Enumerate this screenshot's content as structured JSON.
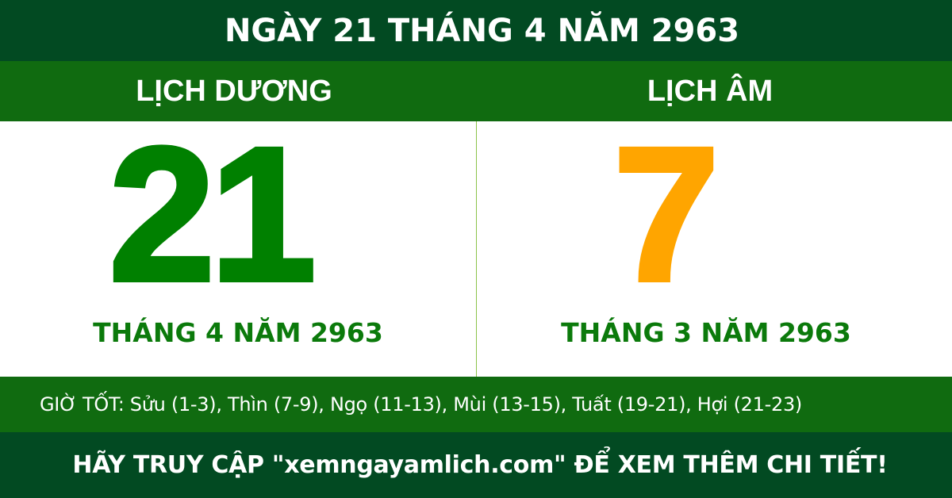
{
  "title": "NGÀY 21 THÁNG 4 NĂM 2963",
  "solar": {
    "heading": "LỊCH DƯƠNG",
    "day": "21",
    "month_year": "THÁNG 4 NĂM 2963"
  },
  "lunar": {
    "heading": "LỊCH ÂM",
    "day": "7",
    "month_year": "THÁNG 3 NĂM 2963"
  },
  "good_hours": "GIỜ TỐT: Sửu (1-3), Thìn (7-9), Ngọ (11-13), Mùi (13-15), Tuất (19-21), Hợi (21-23)",
  "footer": "HÃY TRUY CẬP \"xemngayamlich.com\" ĐỂ XEM THÊM CHI TIẾT!",
  "colors": {
    "dark_green": "#024a22",
    "green": "#106b10",
    "solar_day": "#008000",
    "lunar_day": "#ffa500"
  }
}
